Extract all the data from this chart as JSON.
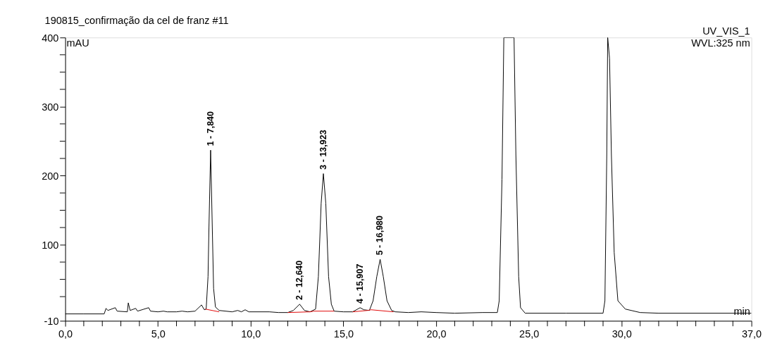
{
  "chart_data": {
    "type": "line",
    "title": "190815_confirmação da cel de franz #11",
    "xlabel": "min",
    "ylabel": "mAU",
    "xlim": [
      0,
      37
    ],
    "ylim": [
      -10,
      400
    ],
    "xticks": [
      {
        "value": 0,
        "label": "0,0"
      },
      {
        "value": 1,
        "label": null
      },
      {
        "value": 2,
        "label": null
      },
      {
        "value": 3,
        "label": null
      },
      {
        "value": 4,
        "label": null
      },
      {
        "value": 5,
        "label": "5,0"
      },
      {
        "value": 6,
        "label": null
      },
      {
        "value": 7,
        "label": null
      },
      {
        "value": 8,
        "label": null
      },
      {
        "value": 9,
        "label": null
      },
      {
        "value": 10,
        "label": "10,0"
      },
      {
        "value": 11,
        "label": null
      },
      {
        "value": 12,
        "label": null
      },
      {
        "value": 13,
        "label": null
      },
      {
        "value": 14,
        "label": null
      },
      {
        "value": 15,
        "label": "15,0"
      },
      {
        "value": 16,
        "label": null
      },
      {
        "value": 17,
        "label": null
      },
      {
        "value": 18,
        "label": null
      },
      {
        "value": 19,
        "label": null
      },
      {
        "value": 20,
        "label": "20,0"
      },
      {
        "value": 21,
        "label": null
      },
      {
        "value": 22,
        "label": null
      },
      {
        "value": 23,
        "label": null
      },
      {
        "value": 24,
        "label": null
      },
      {
        "value": 25,
        "label": "25,0"
      },
      {
        "value": 26,
        "label": null
      },
      {
        "value": 27,
        "label": null
      },
      {
        "value": 28,
        "label": null
      },
      {
        "value": 29,
        "label": null
      },
      {
        "value": 30,
        "label": "30,0"
      },
      {
        "value": 31,
        "label": null
      },
      {
        "value": 32,
        "label": null
      },
      {
        "value": 33,
        "label": null
      },
      {
        "value": 34,
        "label": null
      },
      {
        "value": 35,
        "label": null
      },
      {
        "value": 36,
        "label": null
      },
      {
        "value": 37,
        "label": "37,0"
      }
    ],
    "yticks": [
      -10,
      {
        "value": 25,
        "label": null
      },
      {
        "value": 50,
        "label": null
      },
      {
        "value": 75,
        "label": null
      },
      100,
      {
        "value": 125,
        "label": null
      },
      {
        "value": 150,
        "label": null
      },
      {
        "value": 175,
        "label": null
      },
      200,
      {
        "value": 225,
        "label": null
      },
      {
        "value": 250,
        "label": null
      },
      {
        "value": 275,
        "label": null
      },
      300,
      {
        "value": 325,
        "label": null
      },
      {
        "value": 350,
        "label": null
      },
      {
        "value": 375,
        "label": null
      },
      400
    ],
    "grid": false,
    "marker": "none",
    "line_style": "solid",
    "series": [
      {
        "color": "#000000",
        "x": [
          0,
          1,
          2.1,
          2.2,
          2.3,
          2.7,
          2.8,
          3.35,
          3.4,
          3.5,
          3.8,
          3.9,
          4.5,
          4.6,
          5.0,
          5.3,
          5.5,
          6.0,
          6.3,
          6.6,
          7.0,
          7.35,
          7.5,
          7.6,
          7.7,
          7.75,
          7.84,
          7.93,
          8.0,
          8.1,
          8.3,
          9.0,
          9.3,
          9.5,
          9.7,
          9.9,
          11.0,
          11.5,
          12.0,
          12.3,
          12.64,
          12.9,
          13.2,
          13.5,
          13.65,
          13.8,
          13.92,
          14.05,
          14.2,
          14.35,
          14.5,
          15.0,
          15.5,
          15.7,
          15.9,
          16.1,
          16.4,
          16.6,
          16.8,
          16.98,
          17.15,
          17.35,
          17.6,
          17.8,
          18.5,
          19.2,
          20,
          21,
          22.5,
          23.3,
          23.4,
          23.55,
          23.65,
          24.2,
          24.3,
          24.45,
          24.55,
          24.8,
          27,
          29.0,
          29.1,
          29.2,
          29.25,
          29.35,
          29.45,
          29.6,
          29.8,
          30.2,
          31,
          32,
          37
        ],
        "values": [
          0,
          0,
          0,
          8,
          5,
          9,
          4,
          3,
          16,
          5,
          8,
          4,
          9,
          4,
          3,
          4,
          3,
          3,
          4,
          3,
          4,
          13,
          6,
          7,
          54,
          125,
          237,
          125,
          37,
          10,
          5,
          3,
          5,
          3,
          6,
          3,
          3,
          2,
          2,
          5,
          14,
          5,
          3,
          7,
          54,
          160,
          203,
          160,
          54,
          14,
          4,
          3,
          3,
          6,
          9,
          6,
          5,
          19,
          54,
          79,
          54,
          19,
          5,
          3,
          2,
          3,
          2,
          1,
          2,
          2,
          19,
          195,
          400,
          400,
          230,
          54,
          9,
          1,
          1,
          1,
          19,
          230,
          400,
          370,
          230,
          89,
          19,
          7,
          2,
          1,
          1
        ]
      },
      {
        "color": "#e00000",
        "x": [
          7.55,
          8.3,
          8.31,
          12.0,
          13.2,
          13.4,
          14.5,
          14.51,
          15.5,
          16.3,
          16.5,
          17.7
        ],
        "values": [
          7,
          3,
          null,
          2,
          3,
          4,
          4,
          null,
          3,
          5,
          6,
          3
        ]
      }
    ],
    "annotations": [
      {
        "text": "1 - 7,840",
        "x": 7.84,
        "y": 237
      },
      {
        "text": "2 - 12,640",
        "x": 12.64,
        "y": 14
      },
      {
        "text": "3 - 13,923",
        "x": 13.923,
        "y": 203
      },
      {
        "text": "4 - 15,907",
        "x": 15.907,
        "y": 9
      },
      {
        "text": "5 - 16,980",
        "x": 16.98,
        "y": 79
      },
      "UV_VIS_1",
      "WVL:325 nm"
    ]
  }
}
